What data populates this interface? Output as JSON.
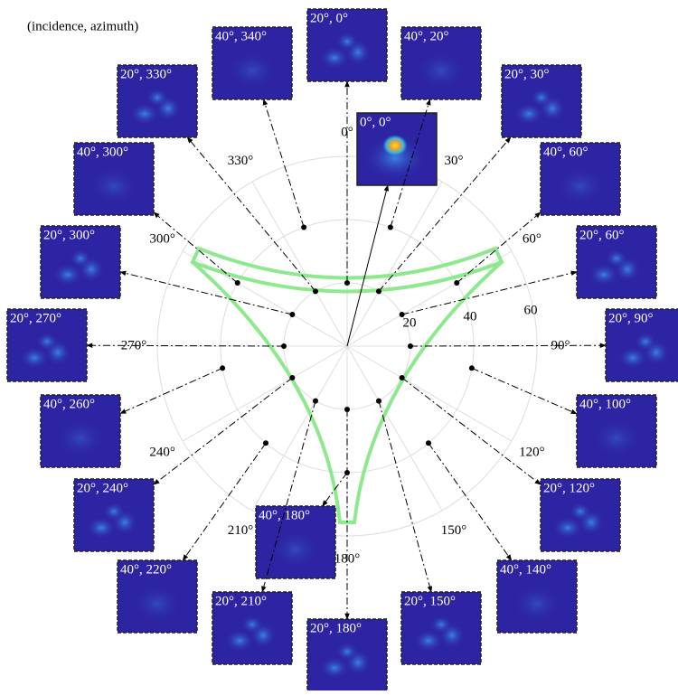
{
  "title": "(incidence, azimuth)",
  "angle_labels": [
    "0°",
    "30°",
    "60°",
    "90°",
    "120°",
    "150°",
    "180°",
    "210°",
    "240°",
    "270°",
    "300°",
    "330°"
  ],
  "radius_labels": [
    "20",
    "40",
    "60"
  ],
  "insets": [
    {
      "label": "0°, 0°",
      "incidence": 0,
      "azimuth": 0
    },
    {
      "label": "20°, 0°",
      "incidence": 20,
      "azimuth": 0
    },
    {
      "label": "40°, 20°",
      "incidence": 40,
      "azimuth": 20
    },
    {
      "label": "20°, 30°",
      "incidence": 20,
      "azimuth": 30
    },
    {
      "label": "40°, 60°",
      "incidence": 40,
      "azimuth": 60
    },
    {
      "label": "20°, 60°",
      "incidence": 20,
      "azimuth": 60
    },
    {
      "label": "20°, 90°",
      "incidence": 20,
      "azimuth": 90
    },
    {
      "label": "40°, 100°",
      "incidence": 40,
      "azimuth": 100
    },
    {
      "label": "20°, 120°",
      "incidence": 20,
      "azimuth": 120
    },
    {
      "label": "40°, 140°",
      "incidence": 40,
      "azimuth": 140
    },
    {
      "label": "20°, 150°",
      "incidence": 20,
      "azimuth": 150
    },
    {
      "label": "20°, 180°",
      "incidence": 20,
      "azimuth": 180
    },
    {
      "label": "40°, 180°",
      "incidence": 40,
      "azimuth": 180
    },
    {
      "label": "20°, 210°",
      "incidence": 20,
      "azimuth": 210
    },
    {
      "label": "40°, 220°",
      "incidence": 40,
      "azimuth": 220
    },
    {
      "label": "20°, 240°",
      "incidence": 20,
      "azimuth": 240
    },
    {
      "label": "40°, 260°",
      "incidence": 40,
      "azimuth": 260
    },
    {
      "label": "20°, 270°",
      "incidence": 20,
      "azimuth": 270
    },
    {
      "label": "20°, 300°",
      "incidence": 20,
      "azimuth": 300
    },
    {
      "label": "40°, 300°",
      "incidence": 40,
      "azimuth": 300
    },
    {
      "label": "20°, 330°",
      "incidence": 20,
      "azimuth": 330
    },
    {
      "label": "40°, 340°",
      "incidence": 40,
      "azimuth": 340
    }
  ]
}
